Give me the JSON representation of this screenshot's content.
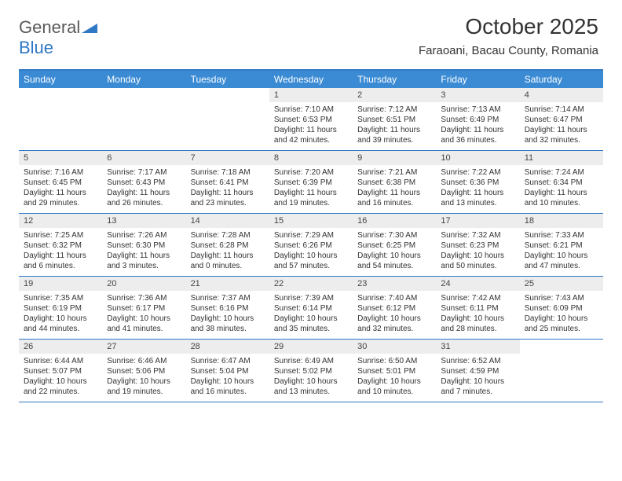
{
  "brand": {
    "part1": "General",
    "part2": "Blue"
  },
  "title": "October 2025",
  "location": "Faraoani, Bacau County, Romania",
  "colors": {
    "header_bg": "#3b8bd4",
    "header_text": "#ffffff",
    "border": "#2f78c4",
    "daynum_bg": "#ededed",
    "text": "#333333",
    "logo_gray": "#5a5a5a",
    "logo_blue": "#2f78c4"
  },
  "weekdays": [
    "Sunday",
    "Monday",
    "Tuesday",
    "Wednesday",
    "Thursday",
    "Friday",
    "Saturday"
  ],
  "weeks": [
    [
      null,
      null,
      null,
      {
        "n": "1",
        "sr": "7:10 AM",
        "ss": "6:53 PM",
        "dl": "11 hours and 42 minutes."
      },
      {
        "n": "2",
        "sr": "7:12 AM",
        "ss": "6:51 PM",
        "dl": "11 hours and 39 minutes."
      },
      {
        "n": "3",
        "sr": "7:13 AM",
        "ss": "6:49 PM",
        "dl": "11 hours and 36 minutes."
      },
      {
        "n": "4",
        "sr": "7:14 AM",
        "ss": "6:47 PM",
        "dl": "11 hours and 32 minutes."
      }
    ],
    [
      {
        "n": "5",
        "sr": "7:16 AM",
        "ss": "6:45 PM",
        "dl": "11 hours and 29 minutes."
      },
      {
        "n": "6",
        "sr": "7:17 AM",
        "ss": "6:43 PM",
        "dl": "11 hours and 26 minutes."
      },
      {
        "n": "7",
        "sr": "7:18 AM",
        "ss": "6:41 PM",
        "dl": "11 hours and 23 minutes."
      },
      {
        "n": "8",
        "sr": "7:20 AM",
        "ss": "6:39 PM",
        "dl": "11 hours and 19 minutes."
      },
      {
        "n": "9",
        "sr": "7:21 AM",
        "ss": "6:38 PM",
        "dl": "11 hours and 16 minutes."
      },
      {
        "n": "10",
        "sr": "7:22 AM",
        "ss": "6:36 PM",
        "dl": "11 hours and 13 minutes."
      },
      {
        "n": "11",
        "sr": "7:24 AM",
        "ss": "6:34 PM",
        "dl": "11 hours and 10 minutes."
      }
    ],
    [
      {
        "n": "12",
        "sr": "7:25 AM",
        "ss": "6:32 PM",
        "dl": "11 hours and 6 minutes."
      },
      {
        "n": "13",
        "sr": "7:26 AM",
        "ss": "6:30 PM",
        "dl": "11 hours and 3 minutes."
      },
      {
        "n": "14",
        "sr": "7:28 AM",
        "ss": "6:28 PM",
        "dl": "11 hours and 0 minutes."
      },
      {
        "n": "15",
        "sr": "7:29 AM",
        "ss": "6:26 PM",
        "dl": "10 hours and 57 minutes."
      },
      {
        "n": "16",
        "sr": "7:30 AM",
        "ss": "6:25 PM",
        "dl": "10 hours and 54 minutes."
      },
      {
        "n": "17",
        "sr": "7:32 AM",
        "ss": "6:23 PM",
        "dl": "10 hours and 50 minutes."
      },
      {
        "n": "18",
        "sr": "7:33 AM",
        "ss": "6:21 PM",
        "dl": "10 hours and 47 minutes."
      }
    ],
    [
      {
        "n": "19",
        "sr": "7:35 AM",
        "ss": "6:19 PM",
        "dl": "10 hours and 44 minutes."
      },
      {
        "n": "20",
        "sr": "7:36 AM",
        "ss": "6:17 PM",
        "dl": "10 hours and 41 minutes."
      },
      {
        "n": "21",
        "sr": "7:37 AM",
        "ss": "6:16 PM",
        "dl": "10 hours and 38 minutes."
      },
      {
        "n": "22",
        "sr": "7:39 AM",
        "ss": "6:14 PM",
        "dl": "10 hours and 35 minutes."
      },
      {
        "n": "23",
        "sr": "7:40 AM",
        "ss": "6:12 PM",
        "dl": "10 hours and 32 minutes."
      },
      {
        "n": "24",
        "sr": "7:42 AM",
        "ss": "6:11 PM",
        "dl": "10 hours and 28 minutes."
      },
      {
        "n": "25",
        "sr": "7:43 AM",
        "ss": "6:09 PM",
        "dl": "10 hours and 25 minutes."
      }
    ],
    [
      {
        "n": "26",
        "sr": "6:44 AM",
        "ss": "5:07 PM",
        "dl": "10 hours and 22 minutes."
      },
      {
        "n": "27",
        "sr": "6:46 AM",
        "ss": "5:06 PM",
        "dl": "10 hours and 19 minutes."
      },
      {
        "n": "28",
        "sr": "6:47 AM",
        "ss": "5:04 PM",
        "dl": "10 hours and 16 minutes."
      },
      {
        "n": "29",
        "sr": "6:49 AM",
        "ss": "5:02 PM",
        "dl": "10 hours and 13 minutes."
      },
      {
        "n": "30",
        "sr": "6:50 AM",
        "ss": "5:01 PM",
        "dl": "10 hours and 10 minutes."
      },
      {
        "n": "31",
        "sr": "6:52 AM",
        "ss": "4:59 PM",
        "dl": "10 hours and 7 minutes."
      },
      null
    ]
  ],
  "labels": {
    "sunrise": "Sunrise:",
    "sunset": "Sunset:",
    "daylight": "Daylight:"
  }
}
